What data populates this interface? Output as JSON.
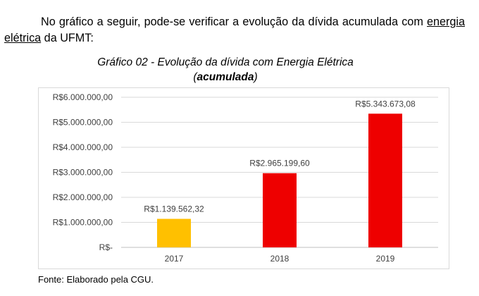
{
  "paragraph": {
    "before": "No gráfico a seguir, pode-se verificar a evolução da dívida acumulada com",
    "underlined": "energia elétrica",
    "after": " da UFMT:"
  },
  "chart_data": {
    "type": "bar",
    "title": "Gráfico 02 - Evolução da dívida com Energia Elétrica",
    "subtitle_open": "(",
    "subtitle_bold": "acumulada",
    "subtitle_close": ")",
    "categories": [
      "2017",
      "2018",
      "2019"
    ],
    "values": [
      1139562.32,
      2965199.6,
      5343673.08
    ],
    "data_labels": [
      "R$1.139.562,32",
      "R$2.965.199,60",
      "R$5.343.673,08"
    ],
    "bar_colors": [
      "#ffc000",
      "#ee0000",
      "#ee0000"
    ],
    "ylim": [
      0,
      6000000
    ],
    "yticks": [
      0,
      1000000,
      2000000,
      3000000,
      4000000,
      5000000,
      6000000
    ],
    "ytick_labels": [
      "R$-",
      "R$1.000.000,00",
      "R$2.000.000,00",
      "R$3.000.000,00",
      "R$4.000.000,00",
      "R$5.000.000,00",
      "R$6.000.000,00"
    ],
    "grid": true,
    "xlabel": "",
    "ylabel": ""
  },
  "source": "Fonte: Elaborado pela CGU."
}
